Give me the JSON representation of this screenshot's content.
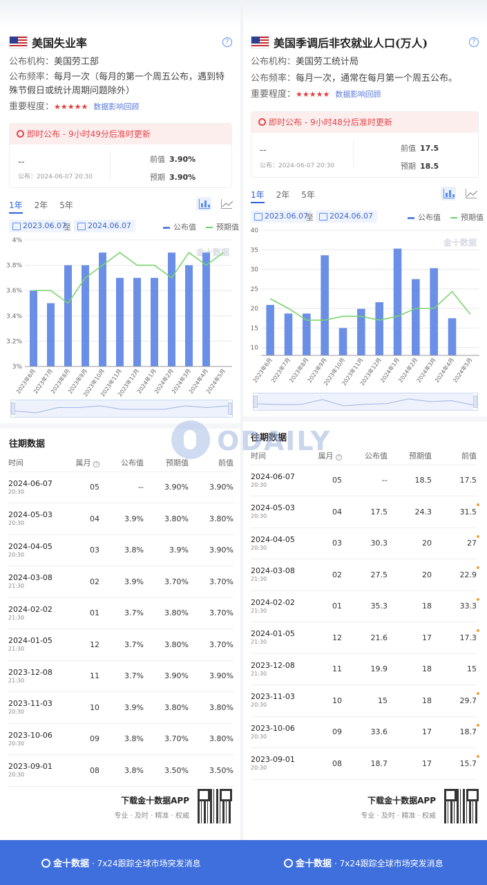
{
  "left": {
    "title": "美国失业率",
    "help": "?",
    "publisher_label": "公布机构：",
    "publisher": "美国劳工部",
    "frequency_label": "公布频率：",
    "frequency": "每月一次（每月的第一个周五公布，遇到特",
    "frequency2": "殊节假日或统计周期问题除外）",
    "importance_label": "重要程度：",
    "stars": "★★★★★",
    "review": "数据影响回顾",
    "notice": "即时公布 - 9小时49分后准时更新",
    "actual": "--",
    "pub_time": "公布：2024-06-07 20:30",
    "prev_label": "前值",
    "prev": "3.90%",
    "forecast_label": "预期",
    "forecast": "3.90%",
    "tabs": [
      "1年",
      "2年",
      "5年"
    ],
    "date_from": "2023.06.07",
    "to_label": "至",
    "date_to": "2024.06.07",
    "legend_actual": "公布值",
    "legend_forecast": "预期值",
    "history_title": "往期数据",
    "col_time": "时间",
    "col_month": "属月",
    "col_actual": "公布值",
    "col_forecast": "预期值",
    "col_prev": "前值",
    "rows": [
      {
        "date": "2024-06-07",
        "time": "20:30",
        "month": "05",
        "actual": "--",
        "forecast": "3.90%",
        "prev": "3.90%",
        "trend": ""
      },
      {
        "date": "2024-05-03",
        "time": "20:30",
        "month": "04",
        "actual": "3.9%",
        "forecast": "3.80%",
        "prev": "3.80%",
        "trend": "up"
      },
      {
        "date": "2024-04-05",
        "time": "20:30",
        "month": "03",
        "actual": "3.8%",
        "forecast": "3.9%",
        "prev": "3.90%",
        "trend": "down"
      },
      {
        "date": "2024-03-08",
        "time": "21:30",
        "month": "02",
        "actual": "3.9%",
        "forecast": "3.70%",
        "prev": "3.70%",
        "trend": "up"
      },
      {
        "date": "2024-02-02",
        "time": "21:30",
        "month": "01",
        "actual": "3.7%",
        "forecast": "3.80%",
        "prev": "3.70%",
        "trend": ""
      },
      {
        "date": "2024-01-05",
        "time": "21:30",
        "month": "12",
        "actual": "3.7%",
        "forecast": "3.80%",
        "prev": "3.70%",
        "trend": ""
      },
      {
        "date": "2023-12-08",
        "time": "21:30",
        "month": "11",
        "actual": "3.7%",
        "forecast": "3.90%",
        "prev": "3.90%",
        "trend": "down"
      },
      {
        "date": "2023-11-03",
        "time": "20:30",
        "month": "10",
        "actual": "3.9%",
        "forecast": "3.80%",
        "prev": "3.80%",
        "trend": "up"
      },
      {
        "date": "2023-10-06",
        "time": "20:30",
        "month": "09",
        "actual": "3.8%",
        "forecast": "3.70%",
        "prev": "3.80%",
        "trend": ""
      },
      {
        "date": "2023-09-01",
        "time": "20:30",
        "month": "08",
        "actual": "3.8%",
        "forecast": "3.50%",
        "prev": "3.50%",
        "trend": "up"
      }
    ],
    "download_title": "下载金十数据APP",
    "download_sub": "专业 · 及时 · 精准 · 权威",
    "chart_watermark": "金十数据"
  },
  "right": {
    "title": "美国季调后非农就业人口(万人)",
    "help": "?",
    "publisher_label": "公布机构：",
    "publisher": "美国劳工统计局",
    "frequency_label": "公布频率：",
    "frequency": "每月一次，通常在每月第一个周五公布。",
    "importance_label": "重要程度：",
    "stars": "★★★★★",
    "review": "数据影响回顾",
    "notice": "即时公布 - 9小时48分后准时更新",
    "actual": "--",
    "pub_time": "公布：2024-06-07 20:30",
    "prev_label": "前值",
    "prev": "17.5",
    "forecast_label": "预期",
    "forecast": "18.5",
    "tabs": [
      "1年",
      "2年",
      "5年"
    ],
    "date_from": "2023.06.07",
    "to_label": "至",
    "date_to": "2024.06.07",
    "legend_actual": "公布值",
    "legend_forecast": "预期值",
    "history_title": "往期数据",
    "col_time": "时间",
    "col_month": "属月",
    "col_actual": "公布值",
    "col_forecast": "预期值",
    "col_prev": "前值",
    "rows": [
      {
        "date": "2024-06-07",
        "time": "20:30",
        "month": "05",
        "actual": "--",
        "forecast": "18.5",
        "prev": "17.5",
        "trend": "",
        "revised": false
      },
      {
        "date": "2024-05-03",
        "time": "20:30",
        "month": "04",
        "actual": "17.5",
        "forecast": "24.3",
        "prev": "31.5",
        "trend": "down",
        "revised": true
      },
      {
        "date": "2024-04-05",
        "time": "20:30",
        "month": "03",
        "actual": "30.3",
        "forecast": "20",
        "prev": "27",
        "trend": "up",
        "revised": true
      },
      {
        "date": "2024-03-08",
        "time": "21:30",
        "month": "02",
        "actual": "27.5",
        "forecast": "20",
        "prev": "22.9",
        "trend": "up",
        "revised": true
      },
      {
        "date": "2024-02-02",
        "time": "21:30",
        "month": "01",
        "actual": "35.3",
        "forecast": "18",
        "prev": "33.3",
        "trend": "up",
        "revised": true
      },
      {
        "date": "2024-01-05",
        "time": "21:30",
        "month": "12",
        "actual": "21.6",
        "forecast": "17",
        "prev": "17.3",
        "trend": "up",
        "revised": true
      },
      {
        "date": "2023-12-08",
        "time": "21:30",
        "month": "11",
        "actual": "19.9",
        "forecast": "18",
        "prev": "15",
        "trend": "up",
        "revised": false
      },
      {
        "date": "2023-11-03",
        "time": "20:30",
        "month": "10",
        "actual": "15",
        "forecast": "18",
        "prev": "29.7",
        "trend": "down",
        "revised": true
      },
      {
        "date": "2023-10-06",
        "time": "20:30",
        "month": "09",
        "actual": "33.6",
        "forecast": "17",
        "prev": "18.7",
        "trend": "up",
        "revised": true
      },
      {
        "date": "2023-09-01",
        "time": "20:30",
        "month": "08",
        "actual": "18.7",
        "forecast": "17",
        "prev": "15.7",
        "trend": "up",
        "revised": true
      }
    ],
    "download_title": "下载金十数据APP",
    "download_sub": "专业 · 及时 · 精准 · 权威",
    "chart_watermark": "金十数据"
  },
  "footer": {
    "brand": "金十数据",
    "slogan": "· 7x24跟踪全球市场突发消息"
  },
  "watermark": "ODAILY",
  "colors": {
    "bar": "#6b8fe6",
    "line": "#7ad46f",
    "up": "#e0302b",
    "down": "#2aa33a",
    "accent": "#3f6fdd"
  },
  "chart_data": [
    {
      "type": "bar",
      "categories": [
        "2023年6月",
        "2023年7月",
        "2023年8月",
        "2023年9月",
        "2023年10月",
        "2023年11月",
        "2023年12月",
        "2024年1月",
        "2024年2月",
        "2024年3月",
        "2024年4月",
        "2024年5月"
      ],
      "series": [
        {
          "name": "公布值",
          "type": "bar",
          "values": [
            3.6,
            3.5,
            3.8,
            3.8,
            3.9,
            3.7,
            3.7,
            3.7,
            3.9,
            3.8,
            3.9,
            null
          ]
        },
        {
          "name": "预期值",
          "type": "line",
          "values": [
            3.6,
            3.6,
            3.5,
            3.7,
            3.8,
            3.9,
            3.8,
            3.8,
            3.7,
            3.9,
            3.8,
            3.9
          ]
        }
      ],
      "yticks": [
        "3%",
        "3.2%",
        "3.4%",
        "3.6%",
        "3.8%",
        "4%"
      ],
      "ylim": [
        3,
        4
      ],
      "grid": true,
      "legend": "top-right"
    },
    {
      "type": "bar",
      "categories": [
        "2023年6月",
        "2023年7月",
        "2023年8月",
        "2023年9月",
        "2023年10月",
        "2023年11月",
        "2023年12月",
        "2024年1月",
        "2024年2月",
        "2024年3月",
        "2024年4月",
        "2024年5月"
      ],
      "series": [
        {
          "name": "公布值",
          "type": "bar",
          "values": [
            20.9,
            18.7,
            18.7,
            33.6,
            15,
            19.9,
            21.6,
            35.3,
            27.5,
            30.3,
            17.5,
            null
          ]
        },
        {
          "name": "预期值",
          "type": "line",
          "values": [
            22.5,
            20,
            17,
            17,
            18,
            18,
            17,
            18,
            20,
            20,
            24.3,
            18.5
          ]
        }
      ],
      "yticks": [
        "10",
        "15",
        "20",
        "25",
        "30",
        "35",
        "40"
      ],
      "ylim": [
        8,
        40
      ],
      "grid": true,
      "legend": "top-right"
    }
  ]
}
